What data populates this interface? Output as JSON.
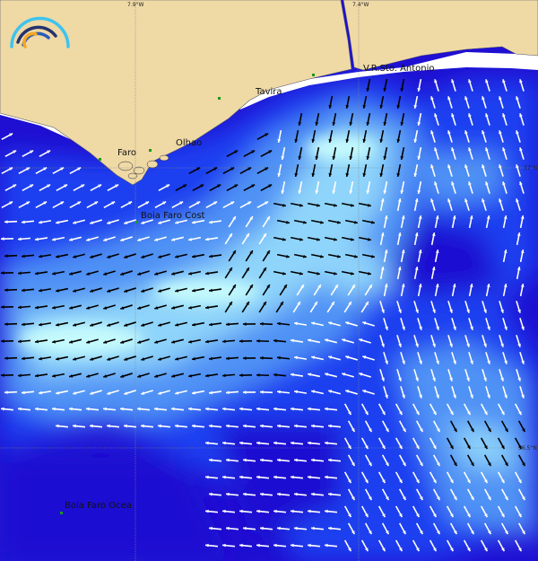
{
  "map": {
    "graticule": {
      "lon_labels": [
        "7.9°W",
        "7.4°W"
      ],
      "lat_labels": [
        "37°N",
        "36.5°N"
      ]
    },
    "places": [
      {
        "name": "Faro"
      },
      {
        "name": "Olhao"
      },
      {
        "name": "Tavira"
      },
      {
        "name": "V.R.Sto. Antonio"
      },
      {
        "name": "Boia Faro Cost"
      },
      {
        "name": "Boia Faro Ocea"
      }
    ],
    "colors": {
      "land": "#efd9a5",
      "deep_water": "#1f0fd2",
      "water_low": "#1b3ff0",
      "water_mid": "#4f92f5",
      "water_high": "#8fd4fa",
      "water_max": "#c6fbfd",
      "arrow_fast": "#000000",
      "arrow_slow": "#ffffff",
      "station_marker": "#1a9a1a"
    },
    "logo": "arcs-logo",
    "legend_icon": "current-arrows"
  }
}
